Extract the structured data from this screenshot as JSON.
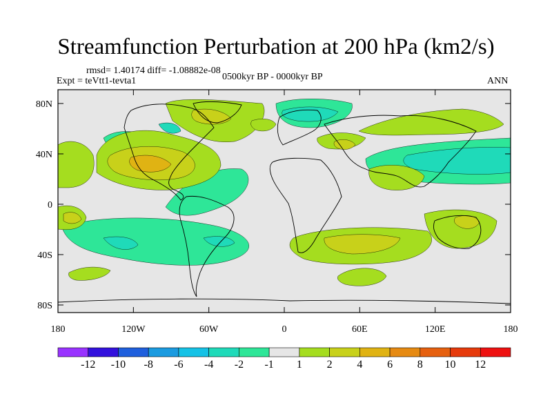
{
  "title": "Streamfunction Perturbation at 200 hPa (km2/s)",
  "stats": "rmsd= 1.40174  diff= -1.08882e-08",
  "experiment": "Expt = teVtt1-tevta1",
  "period": "0500kyr BP - 0000kyr BP",
  "season": "ANN",
  "lat_ticks": [
    "80N",
    "40N",
    "0",
    "40S",
    "80S"
  ],
  "lon_ticks": [
    "180",
    "120W",
    "60W",
    "0",
    "60E",
    "120E",
    "180"
  ],
  "colorbar": {
    "labels": [
      "-12",
      "-10",
      "-8",
      "-6",
      "-4",
      "-2",
      "-1",
      "1",
      "2",
      "4",
      "6",
      "8",
      "10",
      "12"
    ],
    "colors": [
      "#9933ff",
      "#3311dd",
      "#1f5fdd",
      "#1b9be0",
      "#15c2e6",
      "#1fdab9",
      "#2ee698",
      "#e6e6e6",
      "#a5dd1f",
      "#c8d11a",
      "#e0b313",
      "#e68a12",
      "#e6600f",
      "#e63a0c",
      "#ee1111"
    ]
  }
}
